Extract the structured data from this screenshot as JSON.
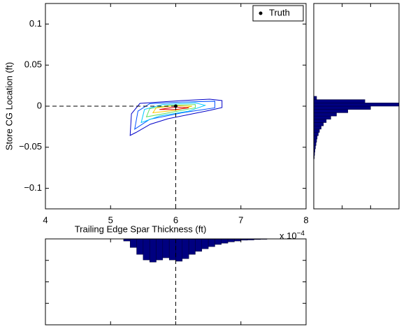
{
  "chart_data": [
    {
      "type": "contour",
      "xlabel": "Trailing Edge Spar Thickness (ft)",
      "ylabel": "Store CG Location (ft)",
      "x_multiplier": "x 10",
      "x_exponent": "−4",
      "xlim": [
        4,
        8
      ],
      "xticks": [
        4,
        5,
        6,
        7,
        8
      ],
      "ylim": [
        -0.125,
        0.125
      ],
      "yticks": [
        {
          "value": -0.1,
          "label": "−0.1"
        },
        {
          "value": -0.05,
          "label": "−0.05"
        },
        0,
        0.05,
        0.1
      ],
      "legend": "upper right",
      "truth": {
        "name": "Truth",
        "x": 6,
        "y": 0,
        "color": "#000000"
      },
      "series": [
        {
          "color": "#0000c8",
          "x": [
            5.3,
            5.32,
            5.45,
            5.77,
            6.09,
            6.52,
            6.71,
            6.71,
            6.52,
            6.2,
            5.88,
            5.61,
            5.39
          ],
          "y": [
            -0.0356,
            -0.0093,
            0.0034,
            0.0051,
            0.0068,
            0.0085,
            0.0068,
            -0.0017,
            -0.0051,
            -0.0102,
            -0.0153,
            -0.022,
            -0.032
          ]
        },
        {
          "color": "#0050ff",
          "x": [
            5.37,
            5.42,
            5.6,
            6.1,
            6.6,
            6.6,
            6.1,
            5.6
          ],
          "y": [
            -0.028,
            -0.006,
            0.003,
            0.005,
            0.006,
            -0.002,
            -0.008,
            -0.016
          ]
        },
        {
          "color": "#00c8ff",
          "x": [
            5.47,
            5.52,
            5.8,
            6.3,
            6.45,
            6.2,
            5.75
          ],
          "y": [
            -0.02,
            -0.004,
            0.002,
            0.004,
            0.001,
            -0.006,
            -0.012
          ]
        },
        {
          "color": "#60e060",
          "x": [
            5.55,
            5.6,
            5.9,
            6.3,
            6.3,
            5.9
          ],
          "y": [
            -0.013,
            -0.003,
            0.001,
            0.002,
            -0.002,
            -0.008
          ]
        },
        {
          "color": "#ffc800",
          "x": [
            5.65,
            5.7,
            6.0,
            6.25,
            6.0
          ],
          "y": [
            -0.008,
            -0.002,
            0.0005,
            0.0,
            -0.005
          ]
        },
        {
          "color": "#e00000",
          "x": [
            5.75,
            6.0,
            6.2,
            6.0
          ],
          "y": [
            -0.004,
            -0.001,
            -0.002,
            -0.004
          ]
        }
      ]
    },
    {
      "type": "histogram",
      "orientation": "horizontal",
      "color": "#000080",
      "ylim": [
        -0.125,
        0.125
      ],
      "bins": [
        -0.064,
        -0.06,
        -0.056,
        -0.052,
        -0.048,
        -0.044,
        -0.04,
        -0.036,
        -0.032,
        -0.028,
        -0.024,
        -0.02,
        -0.016,
        -0.012,
        -0.008,
        -0.004,
        0,
        0.004,
        0.008,
        0.012
      ],
      "counts": [
        0.001,
        0.0015,
        0.002,
        0.003,
        0.004,
        0.005,
        0.006,
        0.008,
        0.01,
        0.013,
        0.017,
        0.022,
        0.03,
        0.04,
        0.06,
        0.1,
        0.15,
        0.09,
        0.005
      ],
      "xlim": [
        0,
        0.15
      ],
      "xticks": [
        0,
        0.05,
        0.1,
        0.15
      ]
    },
    {
      "type": "histogram",
      "orientation": "vertical",
      "color": "#000080",
      "xlim": [
        4,
        8
      ],
      "xticks": [
        4,
        5,
        6,
        7,
        8
      ],
      "bins": [
        5.2,
        5.3,
        5.4,
        5.5,
        5.6,
        5.7,
        5.8,
        5.9,
        6.0,
        6.1,
        6.2,
        6.3,
        6.4,
        6.5,
        6.6,
        6.7,
        6.8,
        6.9,
        7.0,
        7.1,
        7.2,
        7.3,
        7.4
      ],
      "counts": [
        0.005,
        0.02,
        0.036,
        0.049,
        0.054,
        0.049,
        0.044,
        0.049,
        0.052,
        0.046,
        0.036,
        0.029,
        0.023,
        0.018,
        0.013,
        0.01,
        0.007,
        0.005,
        0.003,
        0.0025,
        0.0015,
        0.001
      ],
      "ylim": [
        0,
        0.2
      ],
      "yticks": [
        0,
        0.05,
        0.1,
        0.15,
        0.2
      ]
    }
  ]
}
